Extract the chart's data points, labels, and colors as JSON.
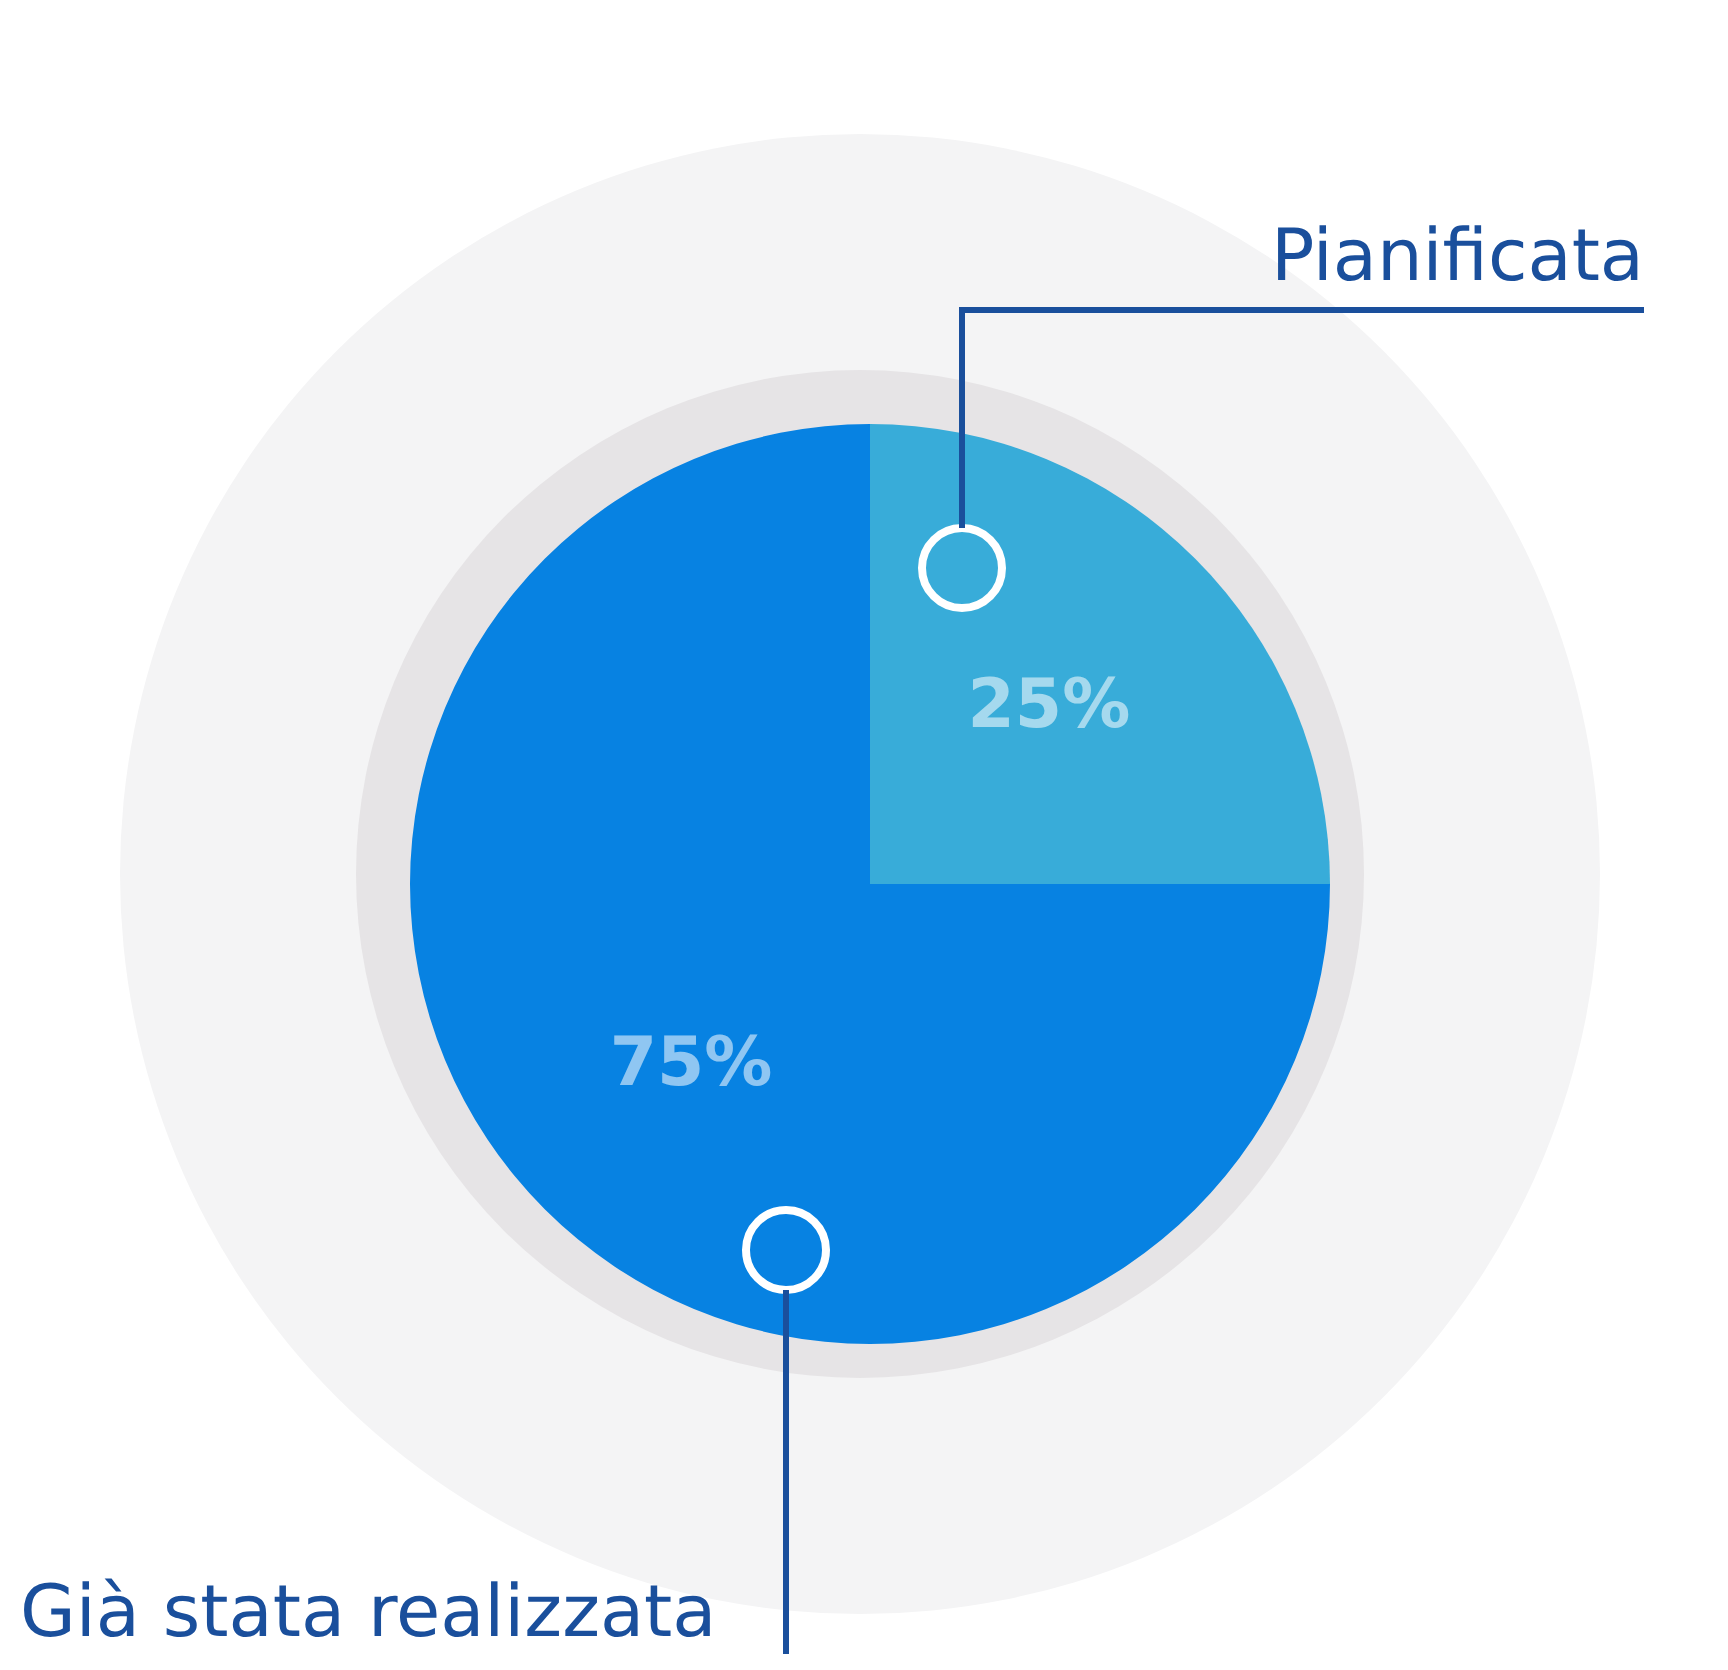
{
  "chart_data": {
    "type": "pie",
    "categories": [
      "Pianificata",
      "Già stata realizzata"
    ],
    "values": [
      25,
      75
    ],
    "colors": [
      "#38acd9",
      "#0782e2"
    ],
    "value_labels": [
      "25%",
      "75%"
    ]
  }
}
